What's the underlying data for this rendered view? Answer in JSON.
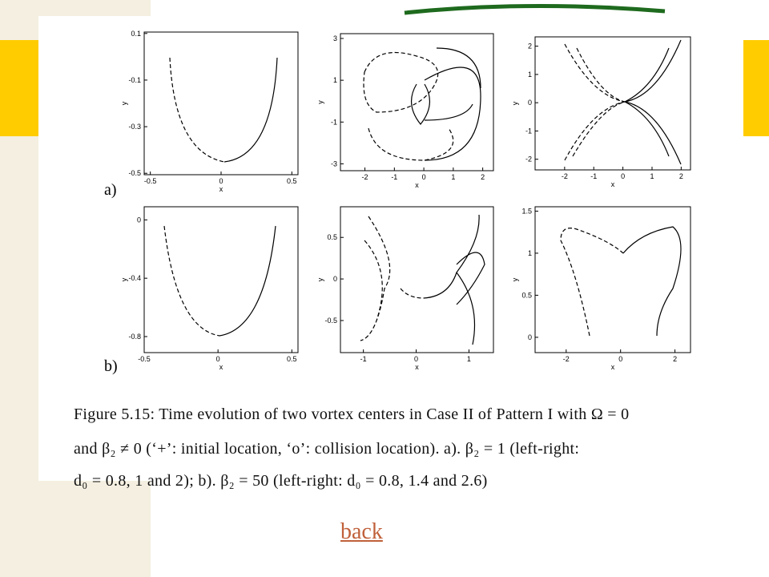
{
  "rows": [
    {
      "label": "a)",
      "panels": [
        {
          "xlabel": "x",
          "ylabel": "y",
          "xticks": [
            "-0.5",
            "0",
            "0.5"
          ],
          "yticks": [
            "0.1",
            "-0.1",
            "-0.3",
            "-0.5"
          ]
        },
        {
          "xlabel": "x",
          "ylabel": "y",
          "xticks": [
            "-2",
            "-1",
            "0",
            "1",
            "2"
          ],
          "yticks": [
            "3",
            "1",
            "-1",
            "-3"
          ]
        },
        {
          "xlabel": "x",
          "ylabel": "y",
          "xticks": [
            "-2",
            "-1",
            "0",
            "1",
            "2"
          ],
          "yticks": [
            "2",
            "1",
            "0",
            "-1",
            "-2"
          ]
        }
      ]
    },
    {
      "label": "b)",
      "panels": [
        {
          "xlabel": "x",
          "ylabel": "y",
          "xticks": [
            "-0.5",
            "0",
            "0.5"
          ],
          "yticks": [
            "0",
            "-0.4",
            "-0.8"
          ]
        },
        {
          "xlabel": "x",
          "ylabel": "y",
          "xticks": [
            "-1",
            "0",
            "1"
          ],
          "yticks": [
            "0.5",
            "0",
            "-0.5"
          ]
        },
        {
          "xlabel": "x",
          "ylabel": "y",
          "xticks": [
            "-2",
            "0",
            "2"
          ],
          "yticks": [
            "1.5",
            "1",
            "0.5",
            "0"
          ]
        }
      ]
    }
  ],
  "caption": [
    "Figure 5.15: Time evolution of two vortex centers in Case II of Pattern I with Ω = 0",
    "and β₂ ≠ 0 (‘+’: initial location, ‘o’: collision location). a). β₂ = 1 (left-right:",
    "d₀ = 0.8, 1 and 2); b). β₂ = 50 (left-right: d₀ = 0.8, 1.4 and 2.6)"
  ],
  "link": "back"
}
